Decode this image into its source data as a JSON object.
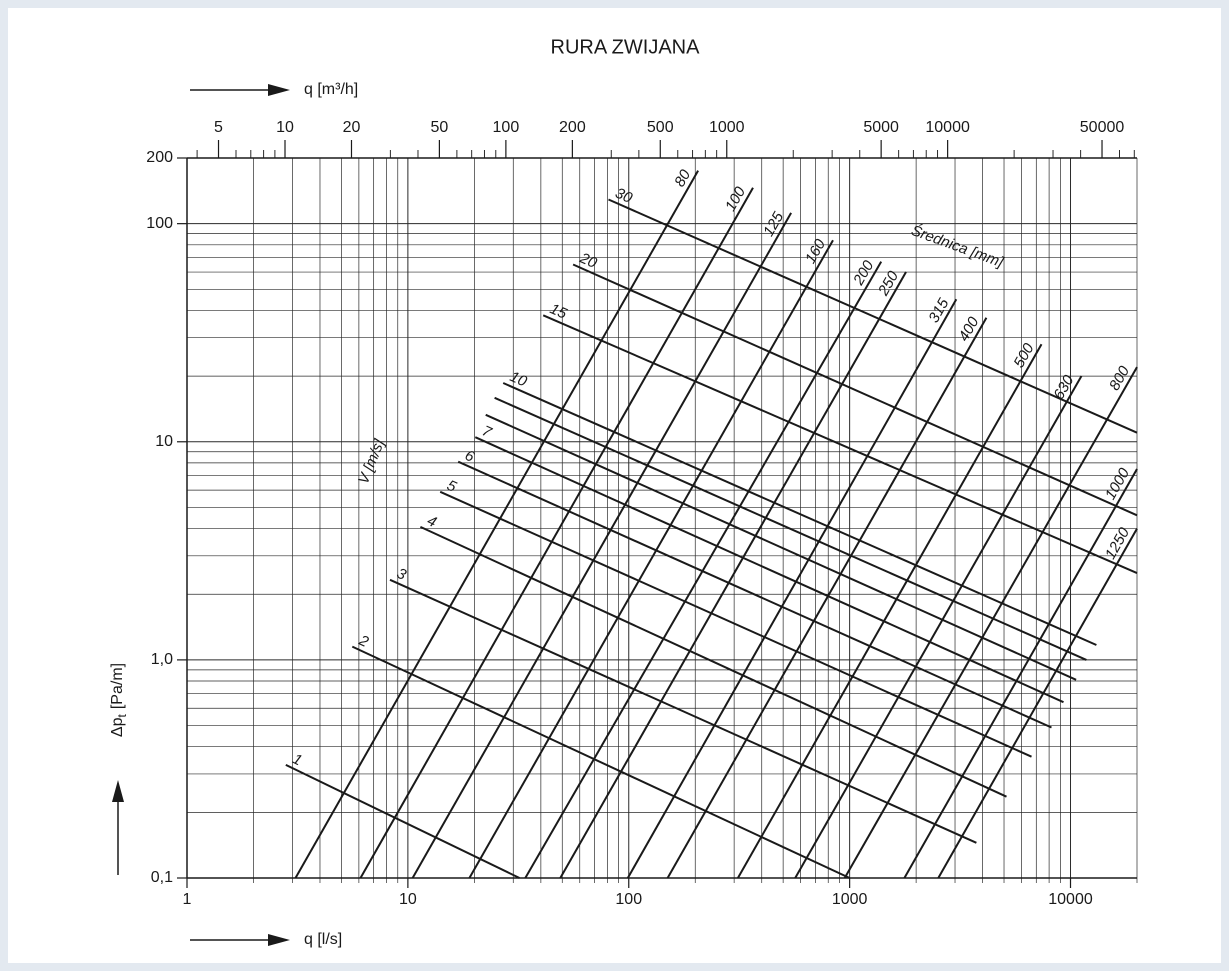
{
  "chart_data": {
    "type": "line",
    "title": "RURA ZWIJANA",
    "x_label": "q [l/s]",
    "x2_label": "q [m³/h]",
    "y_label": [
      "Δp",
      "t",
      "[Pa/m]"
    ],
    "diameter_label": "Średnica [mm]",
    "velocity_label": "V [m/s]",
    "log_x": true,
    "log_y": true,
    "grid": true,
    "minor_grid": true,
    "line_color": "#1a1a1a",
    "xlim": [
      1,
      20000
    ],
    "xticks": [
      1,
      10,
      100,
      1000,
      10000
    ],
    "x2lim": [
      3.6,
      72000
    ],
    "x2ticks": [
      5,
      10,
      20,
      50,
      100,
      200,
      500,
      1000,
      5000,
      10000,
      50000
    ],
    "ylim": [
      0.1,
      200
    ],
    "yticks": [
      {
        "value": 0.1,
        "label": "0,1"
      },
      {
        "value": 1,
        "label": "1,0"
      },
      10,
      100,
      200
    ],
    "diameter_series": [
      {
        "name": "80",
        "x": [
          3.1,
          206
        ],
        "values": [
          0.1,
          175
        ]
      },
      {
        "name": "100",
        "x": [
          6.1,
          365
        ],
        "values": [
          0.1,
          146
        ]
      },
      {
        "name": "125",
        "x": [
          10.5,
          543
        ],
        "values": [
          0.1,
          112
        ]
      },
      {
        "name": "160",
        "x": [
          19,
          841
        ],
        "values": [
          0.1,
          84
        ]
      },
      {
        "name": "200",
        "x": [
          34,
          1390
        ],
        "values": [
          0.1,
          67
        ]
      },
      {
        "name": "250",
        "x": [
          49,
          1800
        ],
        "values": [
          0.1,
          60
        ]
      },
      {
        "name": "315",
        "x": [
          99,
          3040
        ],
        "values": [
          0.1,
          45
        ]
      },
      {
        "name": "400",
        "x": [
          150,
          4160
        ],
        "values": [
          0.1,
          37
        ]
      },
      {
        "name": "500",
        "x": [
          312,
          7390
        ],
        "values": [
          0.1,
          28
        ]
      },
      {
        "name": "630",
        "x": [
          567,
          11200
        ],
        "values": [
          0.1,
          20
        ]
      },
      {
        "name": "800",
        "x": [
          950,
          20000
        ],
        "values": [
          0.1,
          22
        ]
      },
      {
        "name": "1000",
        "x": [
          1770,
          20000
        ],
        "values": [
          0.1,
          7.5
        ]
      },
      {
        "name": "1250",
        "x": [
          2520,
          20000
        ],
        "values": [
          0.1,
          4
        ]
      }
    ],
    "velocity_series": [
      {
        "name": "1",
        "x": [
          2.8,
          32
        ],
        "values": [
          0.33,
          0.1
        ]
      },
      {
        "name": "2",
        "x": [
          5.6,
          1000
        ],
        "values": [
          1.15,
          0.1
        ]
      },
      {
        "name": "3",
        "x": [
          8.3,
          3750
        ],
        "values": [
          2.33,
          0.145
        ]
      },
      {
        "name": "4",
        "x": [
          11.4,
          5130
        ],
        "values": [
          4.07,
          0.236
        ]
      },
      {
        "name": "5",
        "x": [
          14,
          6660
        ],
        "values": [
          5.9,
          0.36
        ]
      },
      {
        "name": "6",
        "x": [
          16.9,
          8200
        ],
        "values": [
          8.1,
          0.49
        ]
      },
      {
        "name": "7",
        "x": [
          20.2,
          9300
        ],
        "values": [
          10.5,
          0.64
        ]
      },
      {
        "name": null,
        "x": [
          22.5,
          10600
        ],
        "values": [
          13.3,
          0.81
        ]
      },
      {
        "name": null,
        "x": [
          24.7,
          11800
        ],
        "values": [
          15.9,
          1.0
        ]
      },
      {
        "name": "10",
        "x": [
          27,
          13100
        ],
        "values": [
          18.6,
          1.17
        ]
      },
      {
        "name": "15",
        "x": [
          41,
          20000
        ],
        "values": [
          38,
          2.5
        ]
      },
      {
        "name": "20",
        "x": [
          56,
          20000
        ],
        "values": [
          65,
          4.6
        ]
      },
      {
        "name": "30",
        "x": [
          81,
          20000
        ],
        "values": [
          129,
          11
        ]
      }
    ]
  }
}
